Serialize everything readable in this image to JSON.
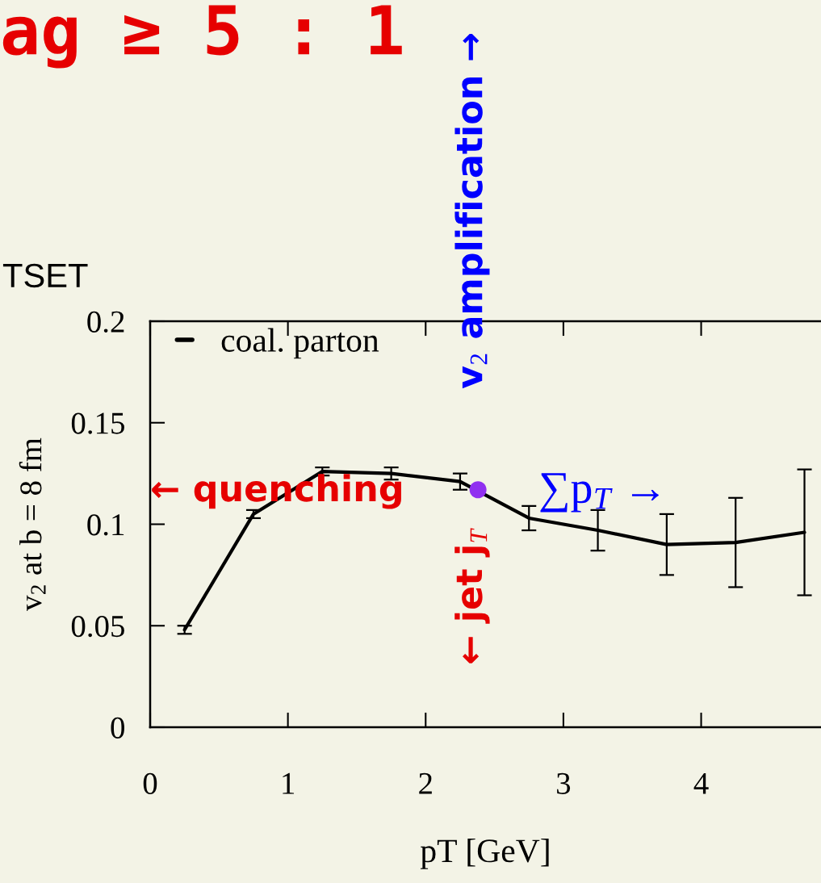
{
  "chart_data": {
    "type": "line",
    "title": "ag ≥ 5 : 1",
    "xlabel": "pT [GeV]",
    "ylabel": "v$_{2}$ at b = 8 fm",
    "xlim": [
      0,
      4.87
    ],
    "xticks": [
      0,
      1,
      2,
      3,
      4
    ],
    "ylim": [
      0,
      0.2
    ],
    "yticks": [
      0,
      0.05,
      0.1,
      0.15,
      0.2
    ],
    "legend": "top left",
    "series": [
      {
        "name": "coal. parton",
        "color": "#000000",
        "x": [
          0.25,
          0.75,
          1.25,
          1.75,
          2.25,
          2.75,
          3.25,
          3.75,
          4.25,
          4.75
        ],
        "values": [
          0.048,
          0.105,
          0.126,
          0.125,
          0.121,
          0.103,
          0.097,
          0.09,
          0.091,
          0.096
        ],
        "errors": [
          0.002,
          0.002,
          0.002,
          0.003,
          0.004,
          0.006,
          0.01,
          0.015,
          0.022,
          0.031
        ]
      },
      {
        "type": "scatter",
        "color": "#9030f0",
        "x": [
          2.38
        ],
        "values": [
          0.117
        ]
      }
    ],
    "annotations": [
      "TSET",
      "← quenching",
      "v$_{2}$ amplification →",
      "← jet j$_{T}$",
      "∑p$_{T}$ →"
    ]
  }
}
